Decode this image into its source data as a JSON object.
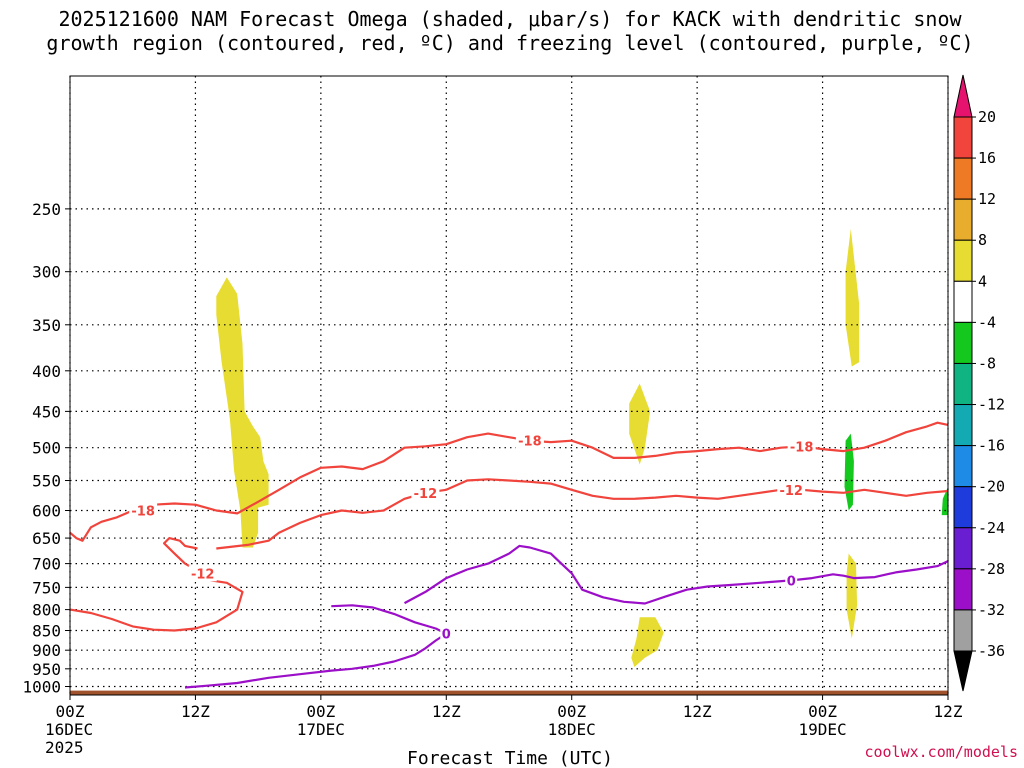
{
  "chart_data": {
    "type": "time-height cross section",
    "title_line1": "2025121600 NAM Forecast Omega (shaded, μbar/s) for KACK with dendritic snow",
    "title_line2": "growth region (contoured, red, ºC) and freezing level (contoured, purple, ºC)",
    "xlabel": "Forecast Time (UTC)",
    "credit": "coolwx.com/models",
    "x_unit": "hours since 2025-12-16 00Z",
    "xlim": [
      0,
      84
    ],
    "y_unit": "hPa",
    "ylim": [
      1025,
      170
    ],
    "x_ticks": [
      {
        "hour": 0,
        "line1": "00Z",
        "line2": "16DEC",
        "line3": "2025"
      },
      {
        "hour": 12,
        "line1": "12Z",
        "line2": "",
        "line3": ""
      },
      {
        "hour": 24,
        "line1": "00Z",
        "line2": "17DEC",
        "line3": ""
      },
      {
        "hour": 36,
        "line1": "12Z",
        "line2": "",
        "line3": ""
      },
      {
        "hour": 48,
        "line1": "00Z",
        "line2": "18DEC",
        "line3": ""
      },
      {
        "hour": 60,
        "line1": "12Z",
        "line2": "",
        "line3": ""
      },
      {
        "hour": 72,
        "line1": "00Z",
        "line2": "19DEC",
        "line3": ""
      },
      {
        "hour": 84,
        "line1": "12Z",
        "line2": "",
        "line3": ""
      }
    ],
    "y_ticks": [
      250,
      300,
      350,
      400,
      450,
      500,
      550,
      600,
      650,
      700,
      750,
      800,
      850,
      900,
      950,
      1000
    ],
    "colorbar": {
      "label_values": [
        "20",
        "16",
        "12",
        "8",
        "4",
        "-4",
        "-8",
        "-12",
        "-16",
        "-20",
        "-24",
        "-28",
        "-32",
        "-36"
      ],
      "bands": [
        {
          "from": 16,
          "to": 20,
          "color": "#f0443c"
        },
        {
          "from": 12,
          "to": 16,
          "color": "#ef7a25"
        },
        {
          "from": 8,
          "to": 12,
          "color": "#e8ad2c"
        },
        {
          "from": 4,
          "to": 8,
          "color": "#e6dc32"
        },
        {
          "from": -4,
          "to": 4,
          "color": "#ffffff"
        },
        {
          "from": -8,
          "to": -4,
          "color": "#14c81e"
        },
        {
          "from": -12,
          "to": -8,
          "color": "#10b482"
        },
        {
          "from": -16,
          "to": -12,
          "color": "#14aab4"
        },
        {
          "from": -20,
          "to": -16,
          "color": "#1e8ce6"
        },
        {
          "from": -24,
          "to": -20,
          "color": "#1e3cdc"
        },
        {
          "from": -28,
          "to": -24,
          "color": "#6a1ed2"
        },
        {
          "from": -32,
          "to": -28,
          "color": "#9b0fc8"
        },
        {
          "from": -36,
          "to": -32,
          "color": "#a0a0a0"
        }
      ],
      "top_arrow_color": "#e6136e",
      "bottom_arrow_color": "#000000"
    },
    "colors": {
      "dendritic_contour": "#f0443c",
      "freezing_contour": "#9b0fc8",
      "ground": "#a0522d",
      "grid": "#000000"
    },
    "contours": [
      {
        "name": "minus-18-line",
        "value": -18,
        "label": "-18",
        "color": "#f0443c",
        "points": [
          [
            0,
            640
          ],
          [
            0.6,
            650
          ],
          [
            1.2,
            655
          ],
          [
            2,
            630
          ],
          [
            3,
            620
          ],
          [
            4.5,
            612
          ],
          [
            6,
            600
          ],
          [
            8,
            590
          ],
          [
            10,
            588
          ],
          [
            12,
            590
          ],
          [
            14,
            600
          ],
          [
            16,
            605
          ],
          [
            18,
            585
          ],
          [
            20,
            565
          ],
          [
            22,
            545
          ],
          [
            24,
            530
          ],
          [
            26,
            528
          ],
          [
            28,
            532
          ],
          [
            30,
            520
          ],
          [
            32,
            500
          ],
          [
            34,
            498
          ],
          [
            36,
            495
          ],
          [
            38,
            485
          ],
          [
            40,
            480
          ],
          [
            42,
            485
          ],
          [
            44,
            490
          ],
          [
            46,
            492
          ],
          [
            48,
            490
          ],
          [
            50,
            500
          ],
          [
            52,
            515
          ],
          [
            54,
            515
          ],
          [
            56,
            512
          ],
          [
            58,
            507
          ],
          [
            60,
            505
          ],
          [
            62,
            502
          ],
          [
            64,
            500
          ],
          [
            66,
            505
          ],
          [
            68,
            500
          ],
          [
            70,
            498
          ],
          [
            72,
            502
          ],
          [
            74,
            505
          ],
          [
            76,
            500
          ],
          [
            78,
            490
          ],
          [
            80,
            478
          ],
          [
            82,
            470
          ],
          [
            83,
            465
          ],
          [
            84,
            468
          ]
        ],
        "labels_at_hours": [
          44,
          7,
          70
        ]
      },
      {
        "name": "minus-12-upper-line",
        "value": -12,
        "label": "-12",
        "color": "#f0443c",
        "points": [
          [
            14,
            670
          ],
          [
            17,
            663
          ],
          [
            19,
            655
          ],
          [
            20,
            640
          ],
          [
            22,
            622
          ],
          [
            24,
            608
          ],
          [
            26,
            600
          ],
          [
            28,
            604
          ],
          [
            30,
            600
          ],
          [
            32,
            580
          ],
          [
            34,
            570
          ],
          [
            36,
            565
          ],
          [
            38,
            550
          ],
          [
            40,
            548
          ],
          [
            42,
            550
          ],
          [
            44,
            552
          ],
          [
            46,
            555
          ],
          [
            48,
            565
          ],
          [
            50,
            575
          ],
          [
            52,
            580
          ],
          [
            54,
            580
          ],
          [
            56,
            578
          ],
          [
            58,
            575
          ],
          [
            60,
            578
          ],
          [
            62,
            580
          ],
          [
            64,
            575
          ],
          [
            66,
            570
          ],
          [
            68,
            565
          ],
          [
            70,
            565
          ],
          [
            72,
            568
          ],
          [
            74,
            570
          ],
          [
            76,
            565
          ],
          [
            78,
            570
          ],
          [
            80,
            575
          ],
          [
            82,
            570
          ],
          [
            84,
            567
          ]
        ],
        "labels_at_hours": [
          34,
          69
        ]
      },
      {
        "name": "minus-12-lower-line",
        "value": -12,
        "label": "-12",
        "color": "#f0443c",
        "points": [
          [
            0,
            800
          ],
          [
            2,
            808
          ],
          [
            4,
            822
          ],
          [
            6,
            840
          ],
          [
            8,
            848
          ],
          [
            10,
            850
          ],
          [
            12,
            845
          ],
          [
            14,
            830
          ],
          [
            16,
            800
          ],
          [
            16.5,
            760
          ],
          [
            15,
            740
          ],
          [
            13.5,
            735
          ],
          [
            12.6,
            720
          ],
          [
            11,
            700
          ],
          [
            10,
            680
          ],
          [
            9,
            660
          ],
          [
            9.5,
            650
          ],
          [
            10.5,
            655
          ],
          [
            11,
            665
          ],
          [
            12.2,
            670
          ]
        ],
        "labels_at_hours": [
          12.7
        ]
      },
      {
        "name": "zero-deg-line",
        "value": 0,
        "label": "0",
        "color": "#9b0fc8",
        "points": [
          [
            25,
            792
          ],
          [
            27,
            790
          ],
          [
            29,
            795
          ],
          [
            31,
            810
          ],
          [
            33,
            830
          ],
          [
            35,
            845
          ],
          [
            36,
            858
          ],
          [
            35,
            875
          ],
          [
            34,
            895
          ],
          [
            33,
            912
          ],
          [
            31,
            930
          ],
          [
            29,
            942
          ],
          [
            27,
            950
          ],
          [
            25,
            955
          ],
          [
            22,
            965
          ],
          [
            19,
            975
          ],
          [
            16,
            990
          ],
          [
            13,
            998
          ],
          [
            11,
            1003
          ]
        ],
        "labels_at_hours": [
          36
        ]
      },
      {
        "name": "zero-deg-main-line",
        "value": 0,
        "label": "0",
        "color": "#9b0fc8",
        "points": [
          [
            32,
            785
          ],
          [
            34,
            760
          ],
          [
            36,
            730
          ],
          [
            38,
            712
          ],
          [
            40,
            700
          ],
          [
            42,
            680
          ],
          [
            43,
            665
          ],
          [
            44,
            668
          ],
          [
            46,
            680
          ],
          [
            47,
            700
          ],
          [
            48,
            720
          ],
          [
            49,
            755
          ],
          [
            51,
            772
          ],
          [
            53,
            782
          ],
          [
            55,
            786
          ],
          [
            57,
            770
          ],
          [
            59,
            755
          ],
          [
            61,
            748
          ],
          [
            63,
            745
          ],
          [
            66,
            740
          ],
          [
            69,
            735
          ],
          [
            71,
            730
          ],
          [
            73,
            722
          ],
          [
            74,
            725
          ],
          [
            75,
            730
          ],
          [
            77,
            728
          ],
          [
            79,
            718
          ],
          [
            81,
            712
          ],
          [
            83,
            705
          ],
          [
            84,
            695
          ]
        ],
        "labels_at_hours": [
          69
        ]
      }
    ],
    "shaded_regions": [
      {
        "name": "upward-motion-12z-16dec",
        "value_range": "4 to 8",
        "color": "#e6dc32",
        "points": [
          [
            14,
            322
          ],
          [
            15,
            305
          ],
          [
            16,
            320
          ],
          [
            16.5,
            370
          ],
          [
            16.7,
            450
          ],
          [
            17.5,
            470
          ],
          [
            18.2,
            485
          ],
          [
            18.5,
            520
          ],
          [
            19,
            540
          ],
          [
            19,
            590
          ],
          [
            18,
            595
          ],
          [
            18,
            640
          ],
          [
            17.5,
            668
          ],
          [
            16.5,
            668
          ],
          [
            16.3,
            600
          ],
          [
            15.7,
            535
          ],
          [
            15.3,
            460
          ],
          [
            14.5,
            390
          ],
          [
            14,
            340
          ]
        ]
      },
      {
        "name": "upward-motion-18dec-mid",
        "value_range": "4 to 8",
        "color": "#e6dc32",
        "points": [
          [
            53.5,
            440
          ],
          [
            54.5,
            415
          ],
          [
            55.5,
            450
          ],
          [
            55,
            500
          ],
          [
            54.5,
            525
          ],
          [
            53.5,
            480
          ]
        ]
      },
      {
        "name": "upward-motion-18dec-low",
        "value_range": "4 to 8",
        "color": "#e6dc32",
        "points": [
          [
            54.5,
            818
          ],
          [
            56,
            818
          ],
          [
            56.8,
            855
          ],
          [
            56.2,
            900
          ],
          [
            55,
            920
          ],
          [
            54,
            945
          ],
          [
            53.7,
            920
          ],
          [
            54.2,
            870
          ]
        ]
      },
      {
        "name": "upward-motion-19dec-upper",
        "value_range": "4 to 8",
        "color": "#e6dc32",
        "points": [
          [
            74.2,
            300
          ],
          [
            74.7,
            265
          ],
          [
            75.5,
            330
          ],
          [
            75.5,
            390
          ],
          [
            74.8,
            395
          ],
          [
            74.2,
            350
          ]
        ]
      },
      {
        "name": "upward-motion-19dec-low",
        "value_range": "4 to 8",
        "color": "#e6dc32",
        "points": [
          [
            74.5,
            680
          ],
          [
            75.2,
            700
          ],
          [
            75.3,
            790
          ],
          [
            74.8,
            870
          ],
          [
            74.3,
            800
          ],
          [
            74.3,
            720
          ]
        ]
      },
      {
        "name": "downward-motion-19dec",
        "value_range": "-4 to -8",
        "color": "#14c81e",
        "points": [
          [
            74.2,
            490
          ],
          [
            74.7,
            480
          ],
          [
            75.0,
            520
          ],
          [
            74.9,
            590
          ],
          [
            74.5,
            600
          ],
          [
            74.1,
            560
          ]
        ]
      },
      {
        "name": "downward-motion-end",
        "value_range": "-4 to -8",
        "color": "#14c81e",
        "points": [
          [
            83.5,
            580
          ],
          [
            84,
            560
          ],
          [
            84,
            608
          ],
          [
            83.4,
            608
          ]
        ]
      }
    ]
  }
}
